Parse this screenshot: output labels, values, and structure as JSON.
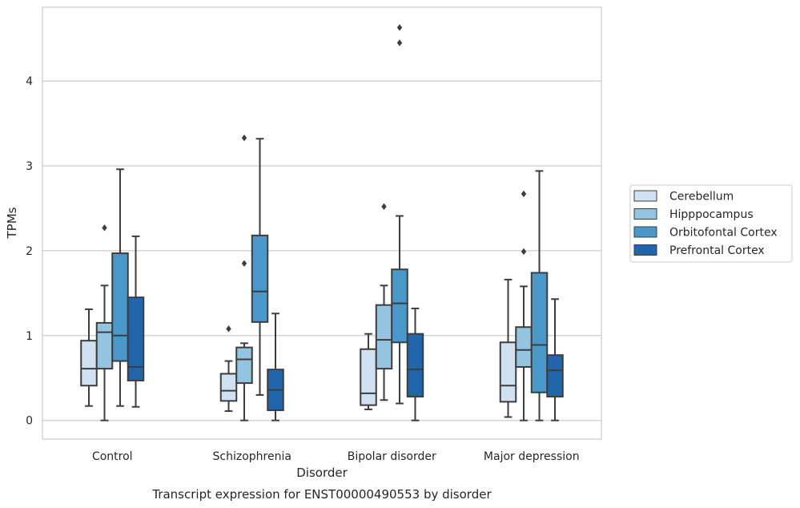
{
  "chart_data": {
    "type": "boxplot",
    "caption": "Transcript expression for ENST00000490553 by disorder",
    "xlabel": "Disorder",
    "ylabel": "TPMs",
    "ylim": [
      -0.22,
      4.87
    ],
    "yticks": [
      0,
      1,
      2,
      3,
      4
    ],
    "grid": "horizontal",
    "legend_position": "right",
    "categories": [
      "Control",
      "Schizophrenia",
      "Bipolar disorder",
      "Major depression"
    ],
    "series": [
      {
        "name": "Cerebellum",
        "color": "#d0e1f2",
        "boxes": [
          {
            "whislo": 0.17,
            "q1": 0.41,
            "med": 0.61,
            "q3": 0.94,
            "whishi": 1.31,
            "fliers": []
          },
          {
            "whislo": 0.11,
            "q1": 0.23,
            "med": 0.35,
            "q3": 0.55,
            "whishi": 0.7,
            "fliers": [
              1.08
            ]
          },
          {
            "whislo": 0.13,
            "q1": 0.18,
            "med": 0.32,
            "q3": 0.84,
            "whishi": 1.02,
            "fliers": []
          },
          {
            "whislo": 0.04,
            "q1": 0.22,
            "med": 0.41,
            "q3": 0.92,
            "whishi": 1.66,
            "fliers": []
          }
        ]
      },
      {
        "name": "Hipppocampus",
        "color": "#94c4df",
        "boxes": [
          {
            "whislo": 0.0,
            "q1": 0.61,
            "med": 1.04,
            "q3": 1.15,
            "whishi": 1.59,
            "fliers": [
              2.27
            ]
          },
          {
            "whislo": 0.0,
            "q1": 0.44,
            "med": 0.72,
            "q3": 0.86,
            "whishi": 0.91,
            "fliers": [
              1.85,
              3.33
            ]
          },
          {
            "whislo": 0.24,
            "q1": 0.61,
            "med": 0.95,
            "q3": 1.36,
            "whishi": 1.59,
            "fliers": [
              2.52
            ]
          },
          {
            "whislo": 0.0,
            "q1": 0.63,
            "med": 0.83,
            "q3": 1.1,
            "whishi": 1.58,
            "fliers": [
              1.99,
              2.67
            ]
          }
        ]
      },
      {
        "name": "Orbitofontal Cortex",
        "color": "#4a98c9",
        "boxes": [
          {
            "whislo": 0.17,
            "q1": 0.7,
            "med": 1.0,
            "q3": 1.97,
            "whishi": 2.96,
            "fliers": []
          },
          {
            "whislo": 0.3,
            "q1": 1.16,
            "med": 1.52,
            "q3": 2.18,
            "whishi": 3.32,
            "fliers": []
          },
          {
            "whislo": 0.2,
            "q1": 0.92,
            "med": 1.38,
            "q3": 1.78,
            "whishi": 2.41,
            "fliers": [
              4.45,
              4.63
            ]
          },
          {
            "whislo": 0.0,
            "q1": 0.33,
            "med": 0.89,
            "q3": 1.74,
            "whishi": 2.94,
            "fliers": []
          }
        ]
      },
      {
        "name": "Prefrontal Cortex",
        "color": "#2166ac",
        "boxes": [
          {
            "whislo": 0.16,
            "q1": 0.47,
            "med": 0.63,
            "q3": 1.45,
            "whishi": 2.17,
            "fliers": []
          },
          {
            "whislo": 0.0,
            "q1": 0.12,
            "med": 0.36,
            "q3": 0.6,
            "whishi": 1.26,
            "fliers": []
          },
          {
            "whislo": 0.0,
            "q1": 0.28,
            "med": 0.6,
            "q3": 1.02,
            "whishi": 1.32,
            "fliers": []
          },
          {
            "whislo": 0.0,
            "q1": 0.28,
            "med": 0.59,
            "q3": 0.77,
            "whishi": 1.43,
            "fliers": []
          }
        ]
      }
    ]
  }
}
